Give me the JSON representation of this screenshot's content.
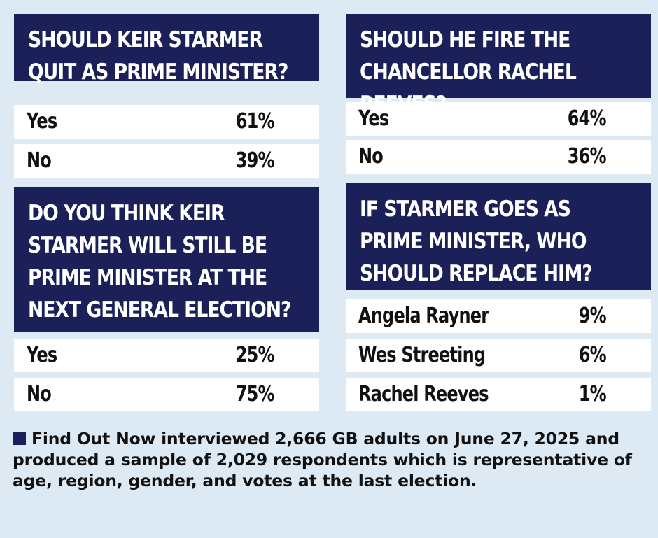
{
  "chart_data": [
    {
      "type": "table",
      "question": "SHOULD KEIR STARMER QUIT AS PRIME MINISTER?",
      "rows": [
        {
          "label": "Yes",
          "value": "61%"
        },
        {
          "label": "No",
          "value": "39%"
        }
      ]
    },
    {
      "type": "table",
      "question": "SHOULD HE FIRE THE CHANCELLOR RACHEL REEVES?",
      "rows": [
        {
          "label": "Yes",
          "value": "64%"
        },
        {
          "label": "No",
          "value": "36%"
        }
      ]
    },
    {
      "type": "table",
      "question": "DO YOU THINK KEIR STARMER WILL STILL BE PRIME MINISTER AT THE NEXT GENERAL ELECTION?",
      "rows": [
        {
          "label": "Yes",
          "value": "25%"
        },
        {
          "label": "No",
          "value": "75%"
        }
      ]
    },
    {
      "type": "table",
      "question": "IF STARMER GOES AS PRIME MINISTER, WHO SHOULD REPLACE HIM?",
      "rows": [
        {
          "label": "Angela Rayner",
          "value": "9%"
        },
        {
          "label": "Wes Streeting",
          "value": "6%"
        },
        {
          "label": "Rachel Reeves",
          "value": "1%"
        }
      ]
    }
  ],
  "footnote": "Find Out Now interviewed 2,666 GB adults on June 27, 2025 and produced a sample of 2,029 respondents which is representative of age, region, gender, and votes at the last election.",
  "colors": {
    "background": "#dde9f3",
    "question_box": "#1b2158",
    "row": "#ffffff",
    "text": "#111111"
  }
}
